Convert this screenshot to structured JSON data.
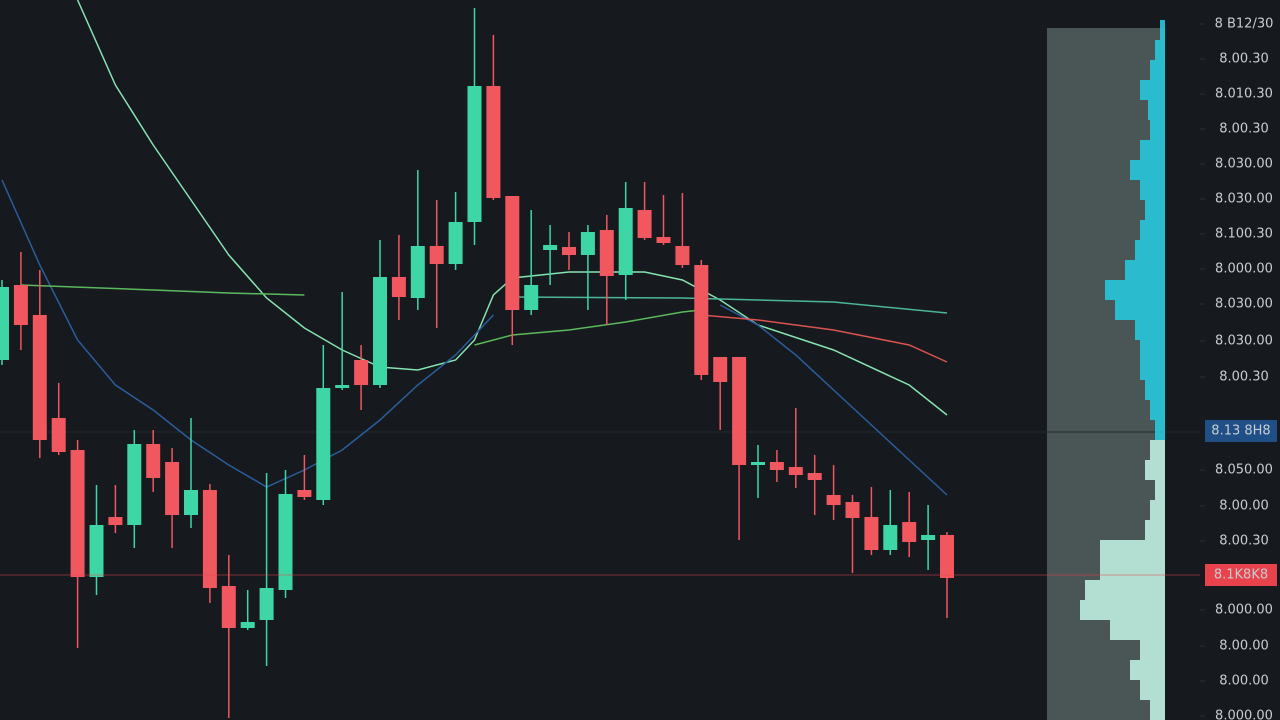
{
  "chart_data": {
    "type": "candlestick",
    "open": [
      360,
      435,
      405,
      302,
      270,
      143,
      203,
      195,
      276,
      258,
      205,
      230,
      134,
      92,
      100,
      130,
      230,
      220,
      332,
      360,
      335,
      443,
      422,
      474,
      456,
      498,
      634,
      524,
      410,
      470,
      473,
      465,
      490,
      445,
      510,
      483,
      474,
      455,
      363,
      363,
      255,
      258,
      253,
      247,
      225,
      218,
      203,
      170,
      198,
      180,
      185
    ],
    "high": [
      440,
      468,
      450,
      337,
      280,
      235,
      235,
      290,
      290,
      272,
      302,
      236,
      165,
      130,
      247,
      250,
      265,
      375,
      428,
      375,
      480,
      485,
      550,
      520,
      528,
      712,
      685,
      524,
      510,
      495,
      488,
      495,
      505,
      538,
      538,
      525,
      527,
      460,
      363,
      363,
      275,
      270,
      312,
      265,
      255,
      225,
      233,
      230,
      228,
      215,
      188
    ],
    "low": [
      355,
      370,
      262,
      265,
      72,
      125,
      187,
      172,
      228,
      172,
      192,
      117,
      2,
      90,
      54,
      122,
      220,
      215,
      330,
      310,
      332,
      400,
      410,
      392,
      450,
      475,
      520,
      375,
      405,
      435,
      450,
      410,
      395,
      420,
      480,
      475,
      452,
      340,
      290,
      180,
      222,
      238,
      232,
      205,
      200,
      147,
      165,
      165,
      163,
      150,
      102
    ],
    "close": [
      433,
      395,
      280,
      268,
      143,
      195,
      195,
      276,
      242,
      205,
      230,
      132,
      92,
      98,
      132,
      226,
      223,
      332,
      335,
      335,
      443,
      423,
      474,
      456,
      498,
      634,
      522,
      410,
      435,
      475,
      465,
      488,
      444,
      512,
      482,
      477,
      455,
      345,
      338,
      255,
      258,
      250,
      245,
      240,
      215,
      202,
      170,
      195,
      178,
      185,
      142
    ],
    "up_color": "#3fd6a6",
    "down_color": "#f0575f",
    "ylim": [
      0,
      720
    ],
    "yticks": [
      {
        "value": 696,
        "label": "8 B12/30"
      },
      {
        "value": 661,
        "label": "8.00.30"
      },
      {
        "value": 626,
        "label": "8.010.30"
      },
      {
        "value": 591,
        "label": "8.00.30"
      },
      {
        "value": 556,
        "label": "8.030.00"
      },
      {
        "value": 521,
        "label": "8.030.00"
      },
      {
        "value": 486,
        "label": "8.100.30"
      },
      {
        "value": 451,
        "label": "8.000.00"
      },
      {
        "value": 416,
        "label": "8.030.00"
      },
      {
        "value": 379,
        "label": "8.030.00"
      },
      {
        "value": 343,
        "label": "8.00.30"
      },
      {
        "value": 250,
        "label": "8.050.00"
      },
      {
        "value": 214,
        "label": "8.00.00"
      },
      {
        "value": 179,
        "label": "8.00.30"
      },
      {
        "value": 110,
        "label": "8.000.00"
      },
      {
        "value": 74,
        "label": "8.00.00"
      },
      {
        "value": 39,
        "label": "8.00.00"
      },
      {
        "value": 4,
        "label": "8.000.00"
      }
    ],
    "price_badges": [
      {
        "value": 289,
        "label": "8.13 8H8",
        "color": "#1f4f86"
      },
      {
        "value": 145,
        "label": "8.1K8K8",
        "color": "#e8424c"
      }
    ],
    "lines": [
      {
        "color": "#86e3b0",
        "x": [
          4,
          6,
          8,
          10,
          12,
          14,
          16,
          18,
          20,
          22,
          24,
          25,
          26,
          27,
          30,
          34,
          36,
          38,
          40,
          44,
          48,
          50
        ],
        "values": [
          720,
          635,
          575,
          520,
          465,
          422,
          392,
          370,
          353,
          350,
          360,
          380,
          425,
          442,
          448,
          448,
          440,
          420,
          395,
          370,
          335,
          305
        ]
      },
      {
        "color": "#2b5c9c",
        "x": [
          0,
          2,
          4,
          6,
          8,
          10,
          12,
          14,
          16,
          17,
          18,
          20,
          22,
          24,
          25,
          26,
          27,
          38,
          40,
          42,
          44,
          46,
          48,
          50
        ],
        "values": [
          540,
          455,
          380,
          335,
          310,
          280,
          255,
          233,
          250,
          260,
          270,
          300,
          335,
          365,
          385,
          405,
          null,
          415,
          395,
          365,
          330,
          295,
          260,
          225
        ]
      },
      {
        "color": "#5cb85c",
        "x": [
          1,
          8,
          12,
          16,
          17,
          25,
          27,
          30,
          33,
          36,
          37
        ],
        "values": [
          435,
          430,
          427,
          425,
          null,
          375,
          385,
          390,
          398,
          408,
          410
        ]
      },
      {
        "color": "#d9534f",
        "x": [
          37,
          40,
          44,
          48,
          50
        ],
        "values": [
          405,
          400,
          390,
          375,
          358
        ]
      },
      {
        "color": "#4ab59a",
        "x": [
          27,
          36,
          44,
          50
        ],
        "values": [
          423,
          422,
          418,
          407
        ]
      }
    ],
    "volume_profile": [
      {
        "color": "#27c8dc",
        "levels": [
          690,
          670,
          650,
          630,
          610,
          590,
          570,
          550,
          530,
          510,
          490,
          470,
          450,
          430,
          410,
          390,
          370,
          350,
          330,
          310,
          290
        ],
        "values": [
          5,
          10,
          15,
          25,
          17,
          15,
          25,
          35,
          25,
          20,
          25,
          30,
          40,
          60,
          50,
          30,
          25,
          25,
          20,
          15,
          10
        ]
      },
      {
        "color": "#bfeee0",
        "levels": [
          270,
          250,
          230,
          210,
          190,
          170,
          150,
          130,
          110,
          90,
          70,
          50,
          30,
          10
        ],
        "values": [
          15,
          20,
          10,
          15,
          20,
          65,
          65,
          80,
          85,
          55,
          25,
          35,
          25,
          15
        ]
      }
    ]
  }
}
